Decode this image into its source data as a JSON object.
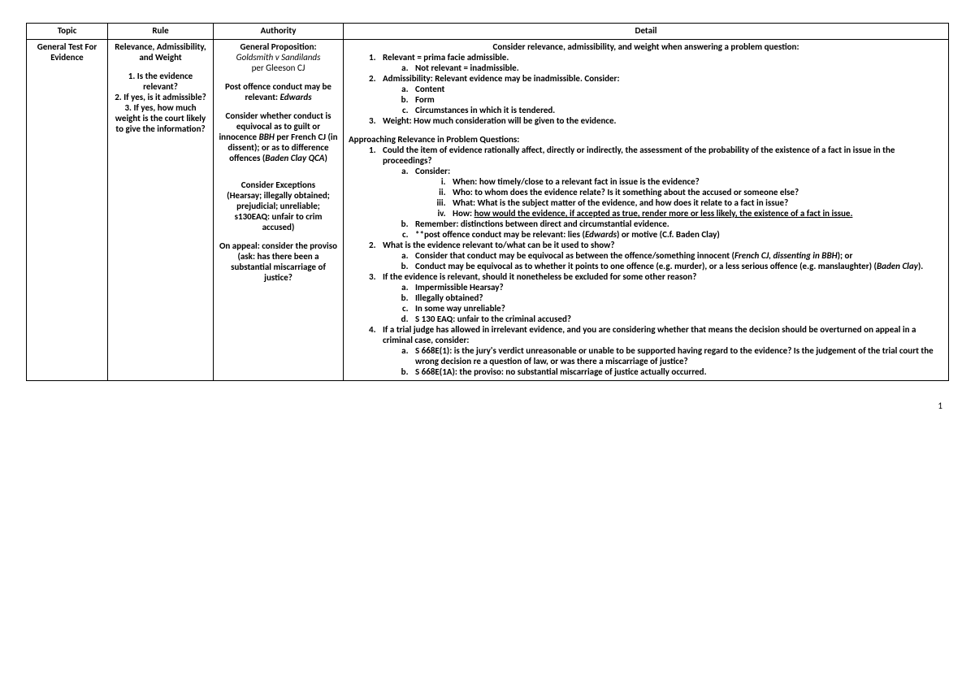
{
  "headers": {
    "topic": "Topic",
    "rule": "Rule",
    "authority": "Authority",
    "detail": "Detail"
  },
  "row1": {
    "topic": "General Test For Evidence",
    "rule": {
      "line1": "Relevance, Admissibility, and Weight",
      "q1": "1. Is the evidence relevant?",
      "q2": "2. If yes, is it admissible?",
      "q3": "3. If yes, how much weight is the court likely to give the information?"
    },
    "authority": {
      "gp_label": "General Proposition:",
      "gp_case": "Goldsmith v Sandilands",
      "gp_judge": "per Gleeson CJ",
      "post_label": "Post offence conduct may be relevant: ",
      "post_case": "Edwards",
      "equi_pre": "Consider whether conduct is equivocal as to guilt or innocence ",
      "equi_case1": "BBH",
      "equi_mid": " per French CJ (in dissent); or as to difference offences (",
      "equi_case2": "Baden Clay QCA",
      "equi_end": ")",
      "exc_label": "Consider Exceptions",
      "exc_body": "(Hearsay; illegally obtained; prejudicial; unreliable; s130EAQ: unfair to crim accused)",
      "appeal": "On appeal: consider the proviso (ask: has there been a substantial miscarriage of justice?"
    },
    "detail": {
      "intro": "Consider relevance, admissibility, and weight when answering a problem question:",
      "p1": "Relevant = prima facie admissible.",
      "p1a": "Not relevant = inadmissible.",
      "p2": "Admissibility: Relevant evidence may be inadmissible. Consider:",
      "p2a": "Content",
      "p2b": "Form",
      "p2c": "Circumstances in which it is tendered.",
      "p3": "Weight: How much consideration will be given to the evidence.",
      "approach_hdr": "Approaching Relevance in Problem Questions:",
      "a1": "Could the item of evidence rationally affect, directly or indirectly, the assessment of the probability of the existence of a fact in issue in the proceedings?",
      "a1a": "Consider:",
      "a1a_i": "When: how timely/close to a relevant fact in issue is the evidence?",
      "a1a_ii": "Who: to whom does the evidence relate? Is it something about the accused or someone else?",
      "a1a_iii": "What: What is the subject matter of the evidence, and how does it relate to a fact in issue?",
      "a1a_iv_pre": "How: ",
      "a1a_iv_u": "how would the evidence, if accepted as true, render more or less likely, the existence of a fact in issue.",
      "a1b": "Remember: distinctions between direct and circumstantial evidence.",
      "a1c_pre": "**post offence conduct may be relevant: lies (",
      "a1c_case1": "Edwards",
      "a1c_mid": ") or motive (C.f. Baden Clay)",
      "a2": "What is the evidence relevant to/what can be it used to show?",
      "a2a_pre": "Consider that conduct may be equivocal as between the offence/something innocent (",
      "a2a_i": "French CJ, dissenting in BBH",
      "a2a_post": "); or",
      "a2b_pre": "Conduct may be equivocal as to whether it points to one offence (e.g. murder), or a less serious offence (e.g. manslaughter) (",
      "a2b_i": "Baden Clay",
      "a2b_post": ").",
      "a3": "If the evidence is relevant, should it nonetheless be excluded for some other reason?",
      "a3a": "Impermissible Hearsay?",
      "a3b": "Illegally obtained?",
      "a3c": "In some way unreliable?",
      "a3d": "S 130 EAQ: unfair to the criminal accused?",
      "a4": "If a trial judge has allowed in irrelevant evidence, and you are considering whether that means the decision should be overturned on appeal in a criminal case, consider:",
      "a4a": "S 668E(1): is the jury's verdict unreasonable or unable to be supported having regard to the evidence? Is the judgement of the trial court the wrong decision re a question of law, or was there a miscarriage of justice?",
      "a4b": "S 668E(1A): the proviso: no substantial miscarriage of justice actually occurred."
    }
  },
  "page_number": "1"
}
